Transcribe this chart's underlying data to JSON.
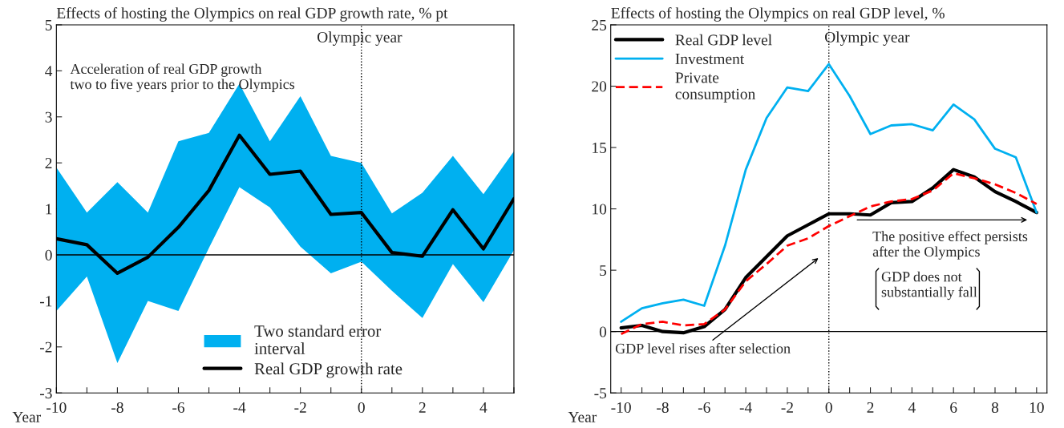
{
  "chart_data": [
    {
      "type": "line",
      "title": "Effects of hosting the Olympics on real GDP growth rate, % pt",
      "xlabel": "Year",
      "x": [
        -10,
        -9,
        -8,
        -7,
        -6,
        -5,
        -4,
        -3,
        -2,
        -1,
        0,
        1,
        2,
        3,
        4,
        5
      ],
      "series": [
        {
          "name": "Real GDP growth rate",
          "type": "line",
          "color": "#000000",
          "values": [
            0.35,
            0.22,
            -0.4,
            -0.05,
            0.6,
            1.4,
            2.6,
            1.75,
            1.82,
            0.88,
            0.92,
            0.05,
            -0.03,
            0.98,
            0.13,
            1.22
          ],
          "lower": [
            -1.22,
            -0.47,
            -2.35,
            -1.0,
            -1.22,
            0.15,
            1.47,
            1.03,
            0.18,
            -0.4,
            -0.15,
            -0.78,
            -1.37,
            -0.2,
            -1.03,
            0.1
          ],
          "upper": [
            1.9,
            0.92,
            1.58,
            0.92,
            2.47,
            2.65,
            3.72,
            2.47,
            3.45,
            2.15,
            2.0,
            0.9,
            1.35,
            2.15,
            1.32,
            2.25
          ]
        }
      ],
      "colors": [
        "#00b0f0"
      ],
      "xlim": [
        -10,
        5
      ],
      "ylim": [
        -3,
        5
      ],
      "xticks": [
        -10,
        {
          "value": -9,
          "label": null
        },
        -8,
        {
          "value": -7,
          "label": null
        },
        -6,
        {
          "value": -5,
          "label": null
        },
        -4,
        {
          "value": -3,
          "label": null
        },
        -2,
        {
          "value": -1,
          "label": null
        },
        0,
        {
          "value": 1,
          "label": null
        },
        2,
        {
          "value": 3,
          "label": null
        },
        4,
        {
          "value": 5,
          "label": null
        }
      ],
      "yticks": [
        -3,
        -2,
        -1,
        0,
        1,
        2,
        3,
        4,
        5
      ],
      "ref_lines": [
        {
          "axis": "x",
          "value": 0,
          "label": "Olympic year",
          "color": "#000000",
          "line_style": "dotted"
        },
        {
          "axis": "y",
          "value": 0,
          "color": "#000000",
          "line_style": "solid"
        }
      ],
      "annotations": [
        "Acceleration of real GDP growth\ntwo to five years prior to the Olympics",
        "Two standard error\ninterval"
      ],
      "legend": "bottom",
      "grid": false
    },
    {
      "type": "line",
      "title": "Effects of hosting the Olympics on real GDP level, %",
      "xlabel": "Year",
      "x": [
        -10,
        -9,
        -8,
        -7,
        -6,
        -5,
        -4,
        -3,
        -2,
        -1,
        0,
        1,
        2,
        3,
        4,
        5,
        6,
        7,
        8,
        9,
        10
      ],
      "series": [
        {
          "name": "Real GDP level",
          "color": "#000000",
          "line_style": "solid",
          "values": [
            0.3,
            0.5,
            0.0,
            -0.1,
            0.4,
            1.8,
            4.4,
            6.1,
            7.8,
            8.7,
            9.6,
            9.6,
            9.5,
            10.5,
            10.6,
            11.7,
            13.2,
            12.6,
            11.4,
            10.6,
            9.7
          ]
        },
        {
          "name": "Investment",
          "color": "#00b0f0",
          "line_style": "solid",
          "values": [
            0.8,
            1.9,
            2.3,
            2.6,
            2.1,
            7.0,
            13.2,
            17.4,
            19.9,
            19.6,
            21.8,
            19.2,
            16.1,
            16.8,
            16.9,
            16.4,
            18.5,
            17.3,
            14.9,
            14.2,
            9.7
          ]
        },
        {
          "name": "Private\nconsumption",
          "color": "#ff0000",
          "line_style": "dashed",
          "values": [
            -0.2,
            0.6,
            0.8,
            0.5,
            0.6,
            1.8,
            4.1,
            5.5,
            7.0,
            7.6,
            8.6,
            9.4,
            10.2,
            10.6,
            10.8,
            11.5,
            12.9,
            12.5,
            12.0,
            11.3,
            10.4
          ]
        }
      ],
      "xlim": [
        -10.5,
        10.5
      ],
      "ylim": [
        -5,
        25
      ],
      "xticks": [
        -10,
        {
          "value": -9,
          "label": null
        },
        -8,
        {
          "value": -7,
          "label": null
        },
        -6,
        {
          "value": -5,
          "label": null
        },
        -4,
        {
          "value": -3,
          "label": null
        },
        -2,
        {
          "value": -1,
          "label": null
        },
        0,
        {
          "value": 1,
          "label": null
        },
        2,
        {
          "value": 3,
          "label": null
        },
        4,
        {
          "value": 5,
          "label": null
        },
        6,
        {
          "value": 7,
          "label": null
        },
        8,
        {
          "value": 9,
          "label": null
        },
        10
      ],
      "yticks": [
        -5,
        0,
        5,
        10,
        15,
        20,
        25
      ],
      "ref_lines": [
        {
          "axis": "x",
          "value": 0,
          "label": "Olympic year",
          "color": "#000000",
          "line_style": "dotted"
        },
        {
          "axis": "y",
          "value": 0,
          "color": "#000000",
          "line_style": "solid"
        }
      ],
      "annotations": [
        "GDP level rises after selection",
        "The positive effect persists\nafter the Olympics",
        "GDP does not\nsubstantially fall"
      ],
      "legend": "top left",
      "grid": false
    }
  ]
}
